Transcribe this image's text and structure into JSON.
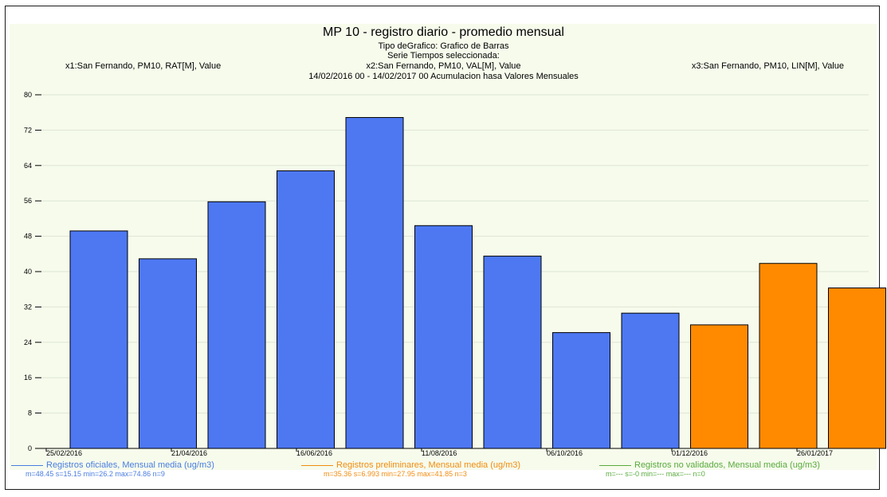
{
  "header": {
    "title": "MP 10 - registro diario - promedio mensual",
    "subtitle_1": "Tipo deGrafico: Grafico de Barras",
    "subtitle_2": "Serie Tiempos seleccionada:",
    "series_x1": "x1:San Fernando, PM10, RAT[M], Value",
    "series_x2": "x2:San Fernando, PM10, VAL[M], Value",
    "series_x3": "x3:San Fernando, PM10, LIN[M], Value",
    "time_range": "14/02/2016 00 - 14/02/2017 00  Acumulacion hasa Valores Mensuales"
  },
  "legend": {
    "official": {
      "label": "Registros oficiales, Mensual media (ug/m3)",
      "stats": "m=48.45 s=15.15 min=26.2 max=74.86 n=9"
    },
    "preliminary": {
      "label": "Registros preliminares, Mensual media (ug/m3)",
      "stats": "m=35.36 s=6.993 min=27.95 max=41.85 n=3"
    },
    "unvalidated": {
      "label": "Registros no validados, Mensual media (ug/m3)",
      "stats": "m=--- s=-0 min=--- max=--- n=0"
    }
  },
  "chart_data": {
    "type": "bar",
    "ylim": [
      0,
      80
    ],
    "y_ticks": [
      0,
      8,
      16,
      24,
      32,
      40,
      48,
      56,
      64,
      72,
      80
    ],
    "x_tick_labels": [
      "25/02/2016",
      "21/04/2016",
      "16/06/2016",
      "11/08/2016",
      "06/10/2016",
      "01/12/2016",
      "26/01/2017"
    ],
    "grid": "horizontal",
    "series": [
      {
        "name": "Registros oficiales, Mensual media (ug/m3)",
        "color": "#4d78f2",
        "values": [
          49.2,
          42.9,
          55.8,
          62.8,
          74.86,
          50.4,
          43.5,
          26.2,
          30.6,
          null,
          null,
          null
        ]
      },
      {
        "name": "Registros preliminares, Mensual media (ug/m3)",
        "color": "#ff8a00",
        "values": [
          null,
          null,
          null,
          null,
          null,
          null,
          null,
          null,
          null,
          27.95,
          41.85,
          36.3
        ]
      },
      {
        "name": "Registros no validados, Mensual media (ug/m3)",
        "color": "#5aaa3e",
        "values": []
      }
    ]
  }
}
